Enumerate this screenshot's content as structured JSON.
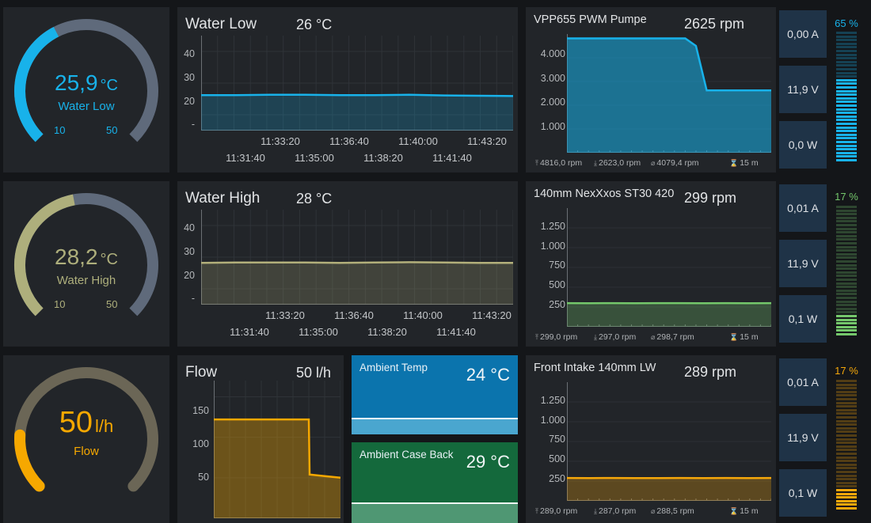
{
  "gauges": [
    {
      "value": "25,9",
      "unit": "°C",
      "label": "Water Low",
      "min": "10",
      "max": "50",
      "color": "#18b2ea",
      "fraction": 0.4
    },
    {
      "value": "28,2",
      "unit": "°C",
      "label": "Water High",
      "min": "10",
      "max": "50",
      "color": "#aeaf7c",
      "fraction": 0.46
    },
    {
      "value": "50",
      "unit": "l/h",
      "label": "Flow",
      "min": "",
      "max": "",
      "color": "#f6a800",
      "fraction": 0.18
    }
  ],
  "temp_panels": [
    {
      "title": "Water Low",
      "value": "26 °C",
      "color": "#18b2ea",
      "y_ticks": [
        "40",
        "30",
        "20",
        "-"
      ],
      "x_ticks_top": [
        "11:33:20",
        "11:36:40",
        "11:40:00",
        "11:43:20"
      ],
      "x_ticks_bottom": [
        "11:31:40",
        "11:35:00",
        "11:38:20",
        "11:41:40"
      ]
    },
    {
      "title": "Water High",
      "value": "28 °C",
      "color": "#b3b07b",
      "y_ticks": [
        "40",
        "30",
        "20",
        "-"
      ],
      "x_ticks_top": [
        "11:33:20",
        "11:36:40",
        "11:40:00",
        "11:43:20"
      ],
      "x_ticks_bottom": [
        "11:31:40",
        "11:35:00",
        "11:38:20",
        "11:41:40"
      ]
    },
    {
      "title": "Flow",
      "value": "50 l/h",
      "color": "#f6a800",
      "y_ticks": [
        "150",
        "100",
        "50"
      ]
    }
  ],
  "ambient": [
    {
      "title": "Ambient Temp",
      "value": "24 °C",
      "color": "#0b74ad"
    },
    {
      "title": "Ambient Case Back",
      "value": "29 °C",
      "color": "#14693c"
    }
  ],
  "fans": [
    {
      "title": "VPP655 PWM Pumpe",
      "rpm": "2625 rpm",
      "color": "#18b2ea",
      "y_ticks": [
        "4.000",
        "3.000",
        "2.000",
        "1.000"
      ],
      "stats": [
        "4816,0 rpm",
        "2623,0 rpm",
        "4079,4 rpm",
        "15 m"
      ],
      "amps": "0,00 A",
      "volts": "11,9 V",
      "watts": "0,0 W",
      "percent": "65 %",
      "percent_value": 65
    },
    {
      "title": "140mm NexXxos ST30 420",
      "rpm": "299 rpm",
      "color": "#74c76b",
      "y_ticks": [
        "1.250",
        "1.000",
        "750",
        "500",
        "250"
      ],
      "stats": [
        "299,0 rpm",
        "297,0 rpm",
        "298,7 rpm",
        "15 m"
      ],
      "amps": "0,01 A",
      "volts": "11,9 V",
      "watts": "0,1 W",
      "percent": "17 %",
      "percent_value": 17
    },
    {
      "title": "Front Intake 140mm LW",
      "rpm": "289 rpm",
      "color": "#f5a70a",
      "y_ticks": [
        "1.250",
        "1.000",
        "750",
        "500",
        "250"
      ],
      "stats": [
        "289,0 rpm",
        "287,0 rpm",
        "288,5 rpm",
        "15 m"
      ],
      "amps": "0,01 A",
      "volts": "11,9 V",
      "watts": "0,1 W",
      "percent": "17 %",
      "percent_value": 17
    }
  ],
  "chart_data": [
    {
      "type": "line",
      "title": "Water Low",
      "ylim": [
        15,
        45
      ],
      "series": [
        {
          "values": [
            26.2,
            26.2,
            26.3,
            26.3,
            26.2,
            26.2,
            26.3,
            26.1,
            26.0,
            25.9
          ]
        }
      ]
    },
    {
      "type": "line",
      "title": "Water High",
      "ylim": [
        15,
        45
      ],
      "series": [
        {
          "values": [
            28.2,
            28.3,
            28.3,
            28.3,
            28.2,
            28.3,
            28.4,
            28.3,
            28.2,
            28.2
          ]
        }
      ]
    },
    {
      "type": "line",
      "title": "Flow",
      "ylim": [
        0,
        170
      ],
      "series": [
        {
          "values": [
            122,
            122,
            122,
            122,
            122,
            122,
            122,
            122,
            122,
            122,
            122,
            122,
            122,
            54,
            52,
            51,
            50
          ]
        }
      ]
    },
    {
      "type": "area",
      "title": "VPP655 PWM Pumpe",
      "ylim": [
        0,
        5000
      ],
      "series": [
        {
          "values": [
            4816,
            4816,
            4816,
            4816,
            4816,
            4816,
            4816,
            4816,
            4816,
            4816,
            4816,
            4816,
            4500,
            2623,
            2623,
            2623,
            2623,
            2623,
            2623,
            2623
          ]
        }
      ]
    },
    {
      "type": "area",
      "title": "140mm NexXxos ST30 420",
      "ylim": [
        0,
        1500
      ],
      "series": [
        {
          "values": [
            299,
            298,
            299,
            298,
            299,
            299,
            298,
            299,
            298,
            299
          ]
        }
      ]
    },
    {
      "type": "area",
      "title": "Front Intake 140mm LW",
      "ylim": [
        0,
        1500
      ],
      "series": [
        {
          "values": [
            289,
            288,
            289,
            288,
            288,
            289,
            288,
            289,
            288,
            289
          ]
        }
      ]
    }
  ]
}
